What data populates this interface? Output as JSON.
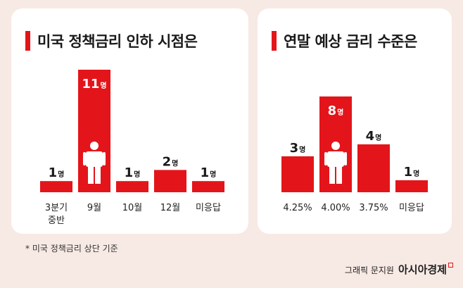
{
  "footnote": "* 미국 정책금리 상단 기준",
  "credit": {
    "text": "그래픽 문지원",
    "brand": "아시아경제"
  },
  "colors": {
    "bar": "#e3151a",
    "background": "#f7e9e4",
    "panel": "#ffffff"
  },
  "icons": [
    "person-icon"
  ],
  "chart_data": [
    {
      "type": "bar",
      "title": "미국 정책금리 인하 시점은",
      "categories": [
        [
          "3분기",
          "중반"
        ],
        [
          "9월"
        ],
        [
          "10월"
        ],
        [
          "12월"
        ],
        [
          "미응답"
        ]
      ],
      "values": [
        1,
        11,
        1,
        2,
        1
      ],
      "data_labels": [
        "1명",
        "11명",
        "1명",
        "2명",
        "1명"
      ],
      "highlight_index": 1,
      "ylim": [
        0,
        11
      ],
      "grid": false,
      "legend": "none"
    },
    {
      "type": "bar",
      "title": "연말 예상 금리 수준은",
      "categories": [
        [
          "4.25%"
        ],
        [
          "4.00%"
        ],
        [
          "3.75%"
        ],
        [
          "미응답"
        ]
      ],
      "values": [
        3,
        8,
        4,
        1
      ],
      "data_labels": [
        "3명",
        "8명",
        "4명",
        "1명"
      ],
      "highlight_index": 1,
      "ylim": [
        0,
        8
      ],
      "grid": false,
      "legend": "none"
    }
  ]
}
